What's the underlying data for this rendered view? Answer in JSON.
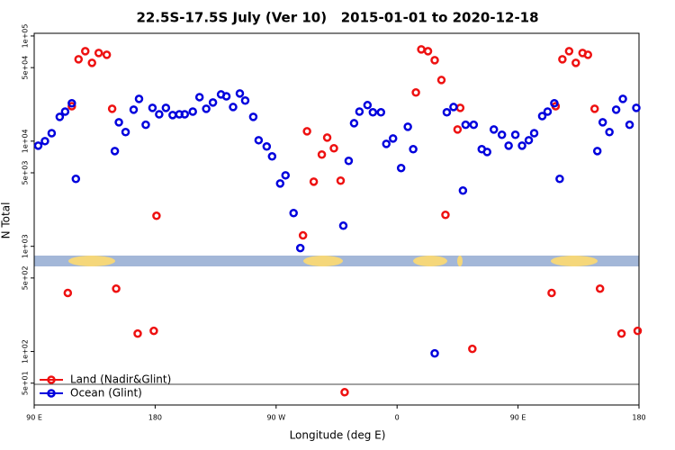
{
  "chart_data": {
    "type": "scatter",
    "title": "22.5S-17.5S July (Ver 10)   2015-01-01 to 2020-12-18",
    "x_label": "Longitude (deg E)",
    "y_label": "N Total",
    "log_y": true,
    "legend": "bottom-left",
    "xlim": [
      90,
      540
    ],
    "xticks": [
      {
        "value": 90,
        "label": "90 E"
      },
      {
        "value": 180,
        "label": "180"
      },
      {
        "value": 270,
        "label": "90 W"
      },
      {
        "value": 360,
        "label": "0"
      },
      {
        "value": 450,
        "label": "90 E"
      },
      {
        "value": 540,
        "label": "180"
      }
    ],
    "ylim": [
      31,
      106000
    ],
    "yticks": [
      {
        "value": 100000,
        "label": "1e+05"
      },
      {
        "value": 50000,
        "label": "5e+04"
      },
      {
        "value": 10000,
        "label": "1e+04"
      },
      {
        "value": 5000,
        "label": "5e+03"
      },
      {
        "value": 1000,
        "label": "1e+03"
      },
      {
        "value": 500,
        "label": "5e+02"
      },
      {
        "value": 100,
        "label": "1e+02"
      },
      {
        "value": 50,
        "label": "5e+01"
      }
    ],
    "series": [
      {
        "name": "Land (Nadir&Glint)",
        "color": "#ee1111",
        "x": [
          115,
          118,
          123,
          128,
          133,
          138,
          144,
          148,
          151,
          167,
          179,
          181,
          290,
          293,
          298,
          304,
          308,
          313,
          318,
          321,
          374,
          378,
          383,
          388,
          393,
          396,
          405,
          407,
          416,
          475,
          478,
          483,
          488,
          493,
          498,
          502,
          507,
          511,
          527,
          539
        ],
        "values": [
          360,
          21500,
          60000,
          71600,
          55500,
          68900,
          66200,
          20300,
          396,
          148,
          157,
          1950,
          1270,
          12400,
          4120,
          7450,
          10800,
          8550,
          4210,
          41,
          29000,
          74500,
          71600,
          58800,
          38100,
          1990,
          12900,
          20700,
          106,
          360,
          21500,
          60000,
          71600,
          55500,
          68900,
          66200,
          20300,
          396,
          148,
          157
        ]
      },
      {
        "name": "Ocean (Glint)",
        "color": "#0000dd",
        "x": [
          93,
          98,
          103,
          109,
          113,
          118,
          121,
          150,
          153,
          158,
          164,
          168,
          173,
          178,
          183,
          188,
          193,
          198,
          202,
          208,
          213,
          218,
          223,
          229,
          233,
          238,
          243,
          247,
          253,
          257,
          263,
          267,
          273,
          277,
          283,
          288,
          320,
          324,
          328,
          332,
          338,
          342,
          348,
          352,
          357,
          363,
          368,
          372,
          388,
          397,
          402,
          409,
          411,
          417,
          423,
          427,
          432,
          438,
          443,
          448,
          453,
          458,
          462,
          468,
          472,
          477,
          481,
          509,
          513,
          518,
          523,
          528,
          533,
          538
        ],
        "values": [
          9060,
          10000,
          11900,
          17000,
          19100,
          22900,
          4380,
          8050,
          15100,
          12200,
          19900,
          25200,
          14300,
          20700,
          18000,
          20700,
          17700,
          18000,
          18000,
          19100,
          26200,
          20300,
          23300,
          27800,
          26700,
          21100,
          28400,
          24300,
          17000,
          10200,
          8890,
          7160,
          3960,
          4730,
          2070,
          962,
          1570,
          6490,
          14800,
          19100,
          22000,
          18800,
          18800,
          9420,
          10600,
          5550,
          13700,
          8380,
          96,
          18800,
          21100,
          3390,
          14300,
          14300,
          8380,
          7890,
          12900,
          11500,
          9060,
          11500,
          9060,
          10200,
          11900,
          17300,
          19100,
          22900,
          4380,
          8050,
          15100,
          12200,
          19900,
          25200,
          14300,
          20700
        ]
      }
    ]
  }
}
